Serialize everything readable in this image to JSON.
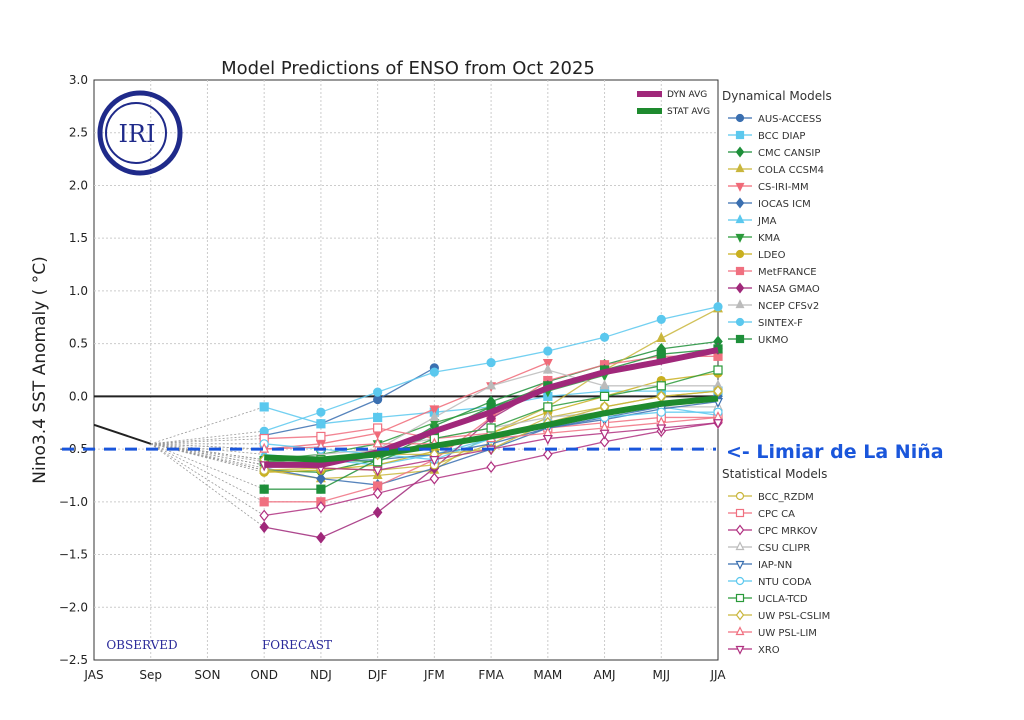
{
  "chart_data": {
    "type": "line",
    "title": "Model Predictions of ENSO from Oct 2025",
    "ylabel": "Nino3.4 SST Anomaly ( °C)",
    "xlabel": "",
    "categories": [
      "JAS",
      "Sep",
      "SON",
      "OND",
      "NDJ",
      "DJF",
      "JFM",
      "FMA",
      "MAM",
      "AMJ",
      "MJJ",
      "JJA"
    ],
    "yticks": [
      "3.0",
      "2.5",
      "2.0",
      "1.5",
      "1.0",
      "0.5",
      "0.0",
      "−0.5",
      "−1.0",
      "−1.5",
      "−2.0",
      "−2.5"
    ],
    "ylim": [
      -2.5,
      3.0
    ],
    "grid": true,
    "observed_label": "OBSERVED",
    "forecast_label": "FORECAST",
    "logo_text": "IRI",
    "observed": {
      "x": [
        "JAS",
        "Sep"
      ],
      "values": [
        -0.27,
        -0.45
      ],
      "color": "#222222"
    },
    "threshold": {
      "value": -0.5,
      "label": "<- Limiar de La Niña",
      "color": "#1a56db"
    },
    "averages": [
      {
        "name": "DYN AVG",
        "color": "#a0287a",
        "values": [
          -0.65,
          -0.65,
          -0.53,
          -0.33,
          -0.15,
          0.08,
          0.23,
          0.33,
          0.44
        ]
      },
      {
        "name": "STAT AVG",
        "color": "#1e8a2e",
        "values": [
          -0.58,
          -0.6,
          -0.55,
          -0.47,
          -0.38,
          -0.27,
          -0.16,
          -0.07,
          -0.02
        ]
      }
    ],
    "dynamical_title": "Dynamical Models",
    "statistical_title": "Statistical Models",
    "dynamical": [
      {
        "name": "AUS-ACCESS",
        "color": "#3a6fb0",
        "marker": "circle",
        "values": [
          -0.37,
          -0.26,
          -0.03,
          0.27
        ]
      },
      {
        "name": "BCC DIAP",
        "color": "#5bc8ee",
        "marker": "square",
        "values": [
          -0.1,
          -0.26,
          -0.2,
          -0.15,
          -0.1,
          0.0,
          0.05,
          0.05,
          0.05
        ]
      },
      {
        "name": "CMC CANSIP",
        "color": "#1e8f3a",
        "marker": "diamond",
        "values": [
          -0.7,
          -0.72,
          -0.6,
          -0.28,
          -0.05,
          0.14,
          0.3,
          0.45,
          0.52
        ]
      },
      {
        "name": "COLA CCSM4",
        "color": "#c9b63c",
        "marker": "tri-up",
        "values": [
          -0.7,
          -0.78,
          -0.75,
          -0.7,
          -0.35,
          -0.1,
          0.25,
          0.55,
          0.83
        ]
      },
      {
        "name": "CS-IRI-MM",
        "color": "#f06a78",
        "marker": "tri-down",
        "values": [
          -0.5,
          -0.45,
          -0.35,
          -0.12,
          0.1,
          0.32
        ]
      },
      {
        "name": "IOCAS ICM",
        "color": "#3a6fb0",
        "marker": "diamond",
        "values": [
          -0.68,
          -0.78,
          -0.84,
          -0.68,
          -0.5,
          -0.3,
          -0.2,
          -0.1,
          0.0
        ]
      },
      {
        "name": "JMA",
        "color": "#5bc8ee",
        "marker": "tri-up",
        "values": [
          -0.55,
          -0.6,
          -0.65,
          -0.55,
          -0.4,
          -0.25,
          -0.15,
          -0.1,
          -0.18
        ]
      },
      {
        "name": "KMA",
        "color": "#2a9a3a",
        "marker": "tri-down",
        "values": [
          -0.6,
          -0.55,
          -0.45,
          -0.25,
          -0.1,
          0.05,
          0.2
        ]
      },
      {
        "name": "LDEO",
        "color": "#c9b020",
        "marker": "circle",
        "values": [
          -0.72,
          -0.7,
          -0.65,
          -0.52,
          -0.35,
          -0.15,
          0.0,
          0.15,
          0.22
        ]
      },
      {
        "name": "MetFRANCE",
        "color": "#f07080",
        "marker": "square",
        "values": [
          -1.0,
          -1.0,
          -0.85,
          -0.6,
          -0.2,
          0.15,
          0.3,
          0.38,
          0.38
        ]
      },
      {
        "name": "NASA GMAO",
        "color": "#a0287a",
        "marker": "diamond",
        "values": [
          -1.24,
          -1.34,
          -1.1,
          -0.68,
          -0.21,
          0.1,
          0.25,
          0.35,
          0.45
        ]
      },
      {
        "name": "NCEP CFSv2",
        "color": "#bbbbbb",
        "marker": "tri-up",
        "values": [
          -0.65,
          -0.55,
          -0.5,
          -0.2,
          0.1,
          0.25,
          0.1,
          0.1,
          0.1
        ]
      },
      {
        "name": "SINTEX-F",
        "color": "#5bc8ee",
        "marker": "circle",
        "values": [
          -0.33,
          -0.15,
          0.04,
          0.23,
          0.32,
          0.43,
          0.56,
          0.73,
          0.85
        ]
      },
      {
        "name": "UKMO",
        "color": "#1e8f3a",
        "marker": "square",
        "values": [
          -0.88,
          -0.88,
          -0.6,
          -0.35,
          -0.1,
          0.1,
          0.25,
          0.4,
          0.45
        ]
      }
    ],
    "statistical": [
      {
        "name": "BCC_RZDM",
        "color": "#c9b63c",
        "marker": "circle",
        "values": [
          -0.7,
          -0.68,
          -0.7,
          -0.65,
          -0.45,
          -0.2,
          -0.1,
          0.0,
          0.05
        ]
      },
      {
        "name": "CPC CA",
        "color": "#f07080",
        "marker": "square",
        "values": [
          -0.4,
          -0.38,
          -0.3,
          -0.4,
          -0.35,
          -0.3,
          -0.25,
          -0.2,
          -0.2
        ]
      },
      {
        "name": "CPC MRKOV",
        "color": "#b03080",
        "marker": "diamond",
        "values": [
          -1.13,
          -1.05,
          -0.92,
          -0.78,
          -0.67,
          -0.55,
          -0.43,
          -0.33,
          -0.25
        ]
      },
      {
        "name": "CSU CLIPR",
        "color": "#bbbbbb",
        "marker": "tri-up",
        "values": [
          -0.6,
          -0.6,
          -0.5,
          -0.4,
          -0.3,
          -0.2,
          -0.15,
          -0.1,
          -0.1
        ]
      },
      {
        "name": "IAP-NN",
        "color": "#3a6fb0",
        "marker": "tri-down",
        "values": [
          -0.65,
          -0.62,
          -0.6,
          -0.55,
          -0.45,
          -0.3,
          -0.22,
          -0.12,
          -0.05
        ]
      },
      {
        "name": "NTU CODA",
        "color": "#5bc8ee",
        "marker": "circle",
        "values": [
          -0.45,
          -0.5,
          -0.55,
          -0.6,
          -0.4,
          -0.25,
          -0.2,
          -0.15,
          -0.15
        ]
      },
      {
        "name": "UCLA-TCD",
        "color": "#2a9a3a",
        "marker": "square",
        "values": [
          -0.62,
          -0.6,
          -0.62,
          -0.4,
          -0.3,
          -0.1,
          0.0,
          0.1,
          0.25
        ]
      },
      {
        "name": "UW PSL-CSLIM",
        "color": "#c9b63c",
        "marker": "diamond",
        "values": [
          -0.6,
          -0.62,
          -0.55,
          -0.55,
          -0.5,
          -0.25,
          -0.1,
          0.0,
          0.05
        ]
      },
      {
        "name": "UW PSL-LIM",
        "color": "#f07080",
        "marker": "tri-up",
        "values": [
          -0.5,
          -0.48,
          -0.45,
          -0.45,
          -0.4,
          -0.35,
          -0.3,
          -0.25,
          -0.2
        ]
      },
      {
        "name": "XRO",
        "color": "#b03080",
        "marker": "tri-down",
        "values": [
          -0.65,
          -0.68,
          -0.7,
          -0.6,
          -0.5,
          -0.4,
          -0.35,
          -0.3,
          -0.25
        ]
      }
    ]
  }
}
